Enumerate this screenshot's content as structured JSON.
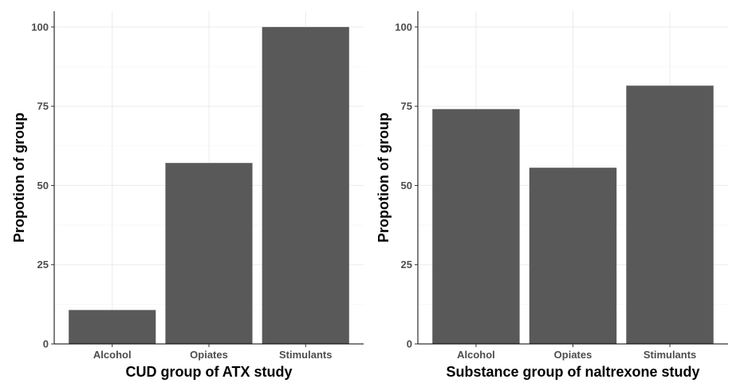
{
  "chart_data": [
    {
      "type": "bar",
      "categories": [
        "Alcohol",
        "Opiates",
        "Stimulants"
      ],
      "values": [
        10.7,
        57.1,
        100
      ],
      "xlabel": "CUD group of ATX study",
      "ylabel": "Propotion of group",
      "ylim": [
        0,
        105
      ],
      "yticks": [
        0,
        25,
        50,
        75,
        100
      ],
      "grid": true,
      "bar_color": "#595959"
    },
    {
      "type": "bar",
      "categories": [
        "Alcohol",
        "Opiates",
        "Stimulants"
      ],
      "values": [
        74.1,
        55.6,
        81.5
      ],
      "xlabel": "Substance group of naltrexone study",
      "ylabel": "Propotion of group",
      "ylim": [
        0,
        105
      ],
      "yticks": [
        0,
        25,
        50,
        75,
        100
      ],
      "grid": true,
      "bar_color": "#595959"
    }
  ]
}
